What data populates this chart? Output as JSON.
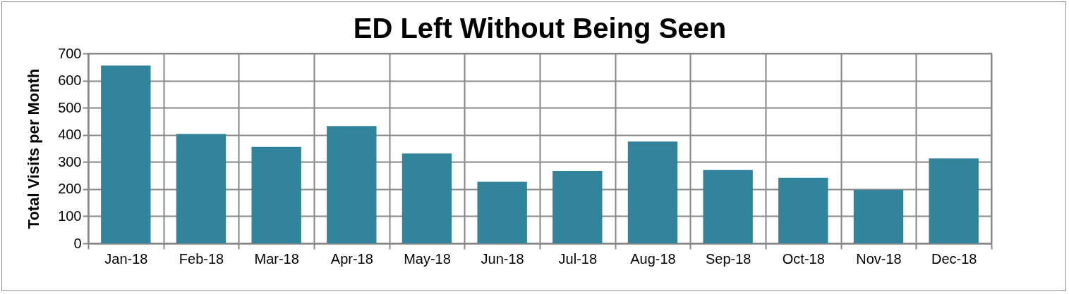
{
  "chart_data": {
    "type": "bar",
    "title": "ED Left Without Being Seen",
    "ylabel": "Total Visits per Month",
    "categories": [
      "Jan-18",
      "Feb-18",
      "Mar-18",
      "Apr-18",
      "May-18",
      "Jun-18",
      "Jul-18",
      "Aug-18",
      "Sep-18",
      "Oct-18",
      "Nov-18",
      "Dec-18"
    ],
    "values": [
      655,
      403,
      356,
      432,
      331,
      227,
      267,
      375,
      270,
      242,
      197,
      313
    ],
    "color": "#31849b",
    "ylim": [
      0,
      700
    ],
    "yticks": [
      0,
      100,
      200,
      300,
      400,
      500,
      600,
      700
    ],
    "grid": true
  }
}
